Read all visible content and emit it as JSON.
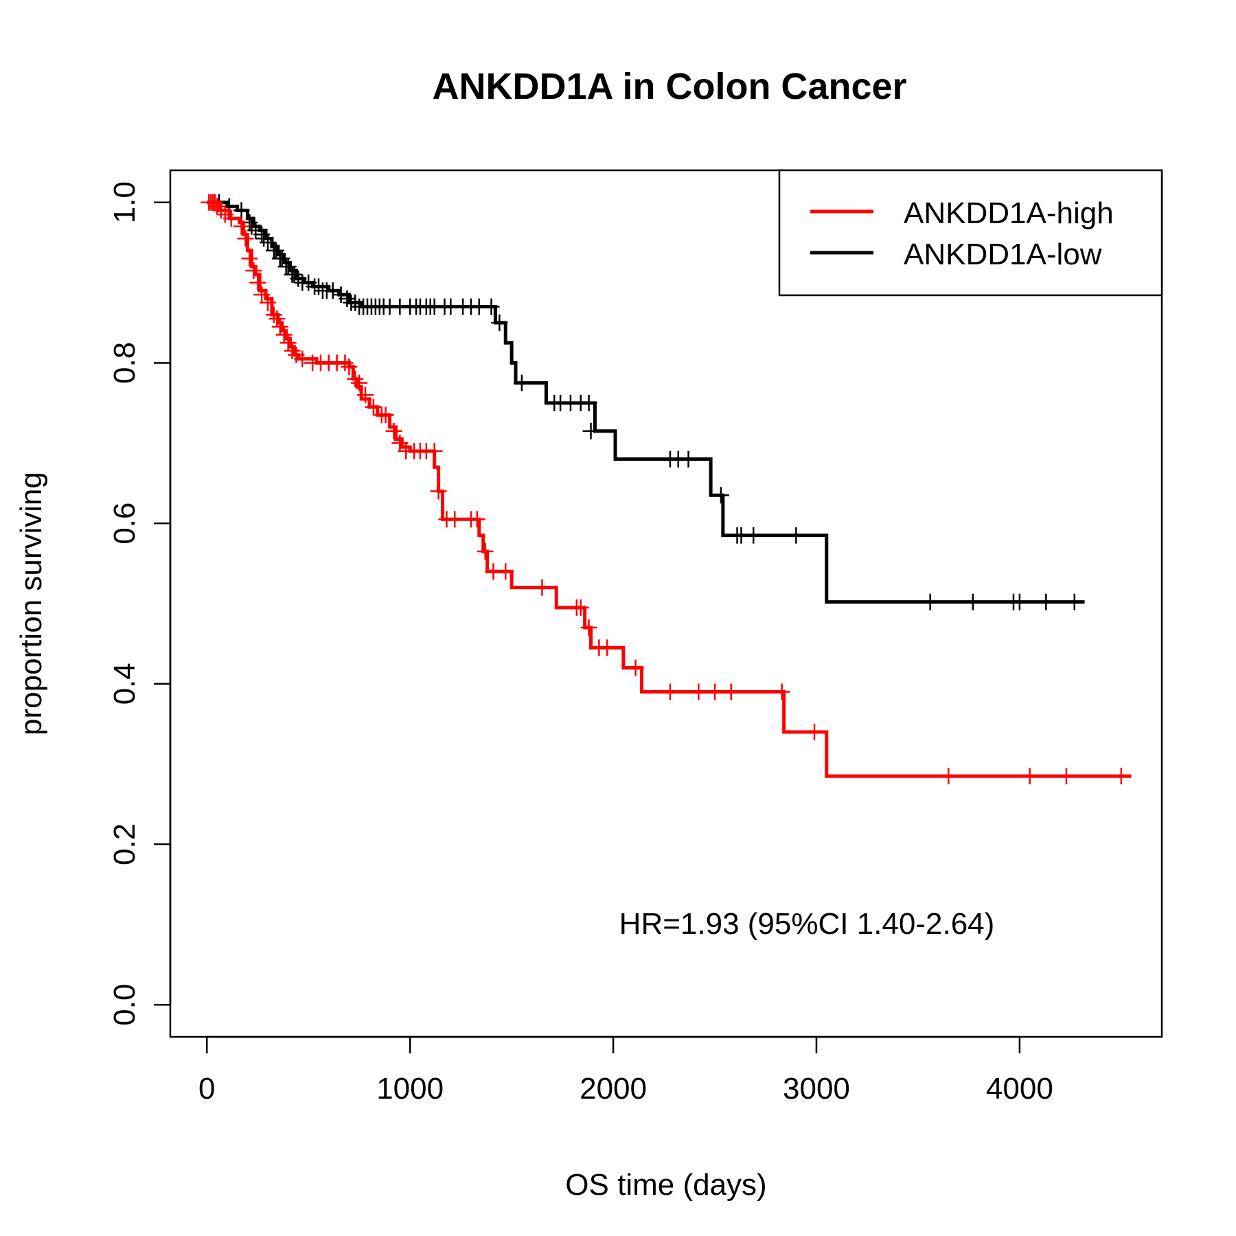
{
  "chart_data": {
    "type": "line",
    "title": "ANKDD1A in Colon Cancer",
    "xlabel": "OS time (days)",
    "ylabel": "proportion surviving",
    "xlim": [
      -180,
      4700
    ],
    "ylim": [
      -0.04,
      1.04
    ],
    "x_ticks": [
      0,
      1000,
      2000,
      3000,
      4000
    ],
    "x_tick_labels": [
      "0",
      "1000",
      "2000",
      "3000",
      "4000"
    ],
    "y_ticks": [
      0.0,
      0.2,
      0.4,
      0.6,
      0.8,
      1.0
    ],
    "y_tick_labels": [
      "0.0",
      "0.2",
      "0.4",
      "0.6",
      "0.8",
      "1.0"
    ],
    "grid": false,
    "legend_position": "top-right",
    "annotation": "HR=1.93 (95%CI 1.40-2.64)",
    "series": [
      {
        "name": "ANKDD1A-high",
        "color": "#ff0000",
        "end_x": 4550,
        "steps": [
          [
            0,
            1.0
          ],
          [
            60,
            0.99
          ],
          [
            110,
            0.98
          ],
          [
            160,
            0.975
          ],
          [
            180,
            0.96
          ],
          [
            200,
            0.94
          ],
          [
            220,
            0.92
          ],
          [
            240,
            0.91
          ],
          [
            260,
            0.89
          ],
          [
            290,
            0.88
          ],
          [
            320,
            0.86
          ],
          [
            350,
            0.85
          ],
          [
            370,
            0.84
          ],
          [
            390,
            0.83
          ],
          [
            410,
            0.82
          ],
          [
            430,
            0.81
          ],
          [
            450,
            0.805
          ],
          [
            540,
            0.8
          ],
          [
            700,
            0.795
          ],
          [
            720,
            0.78
          ],
          [
            740,
            0.77
          ],
          [
            760,
            0.755
          ],
          [
            800,
            0.745
          ],
          [
            840,
            0.735
          ],
          [
            900,
            0.72
          ],
          [
            930,
            0.705
          ],
          [
            960,
            0.695
          ],
          [
            1000,
            0.69
          ],
          [
            1120,
            0.67
          ],
          [
            1140,
            0.64
          ],
          [
            1160,
            0.605
          ],
          [
            1340,
            0.585
          ],
          [
            1360,
            0.565
          ],
          [
            1380,
            0.54
          ],
          [
            1500,
            0.52
          ],
          [
            1720,
            0.495
          ],
          [
            1860,
            0.47
          ],
          [
            1890,
            0.445
          ],
          [
            2050,
            0.42
          ],
          [
            2140,
            0.39
          ],
          [
            2840,
            0.34
          ],
          [
            3050,
            0.285
          ]
        ],
        "censor": [
          [
            10,
            1.0
          ],
          [
            20,
            1.0
          ],
          [
            30,
            1.0
          ],
          [
            40,
            1.0
          ],
          [
            50,
            0.995
          ],
          [
            70,
            0.99
          ],
          [
            90,
            0.985
          ],
          [
            120,
            0.98
          ],
          [
            170,
            0.97
          ],
          [
            190,
            0.955
          ],
          [
            210,
            0.93
          ],
          [
            230,
            0.915
          ],
          [
            250,
            0.9
          ],
          [
            270,
            0.885
          ],
          [
            300,
            0.875
          ],
          [
            330,
            0.86
          ],
          [
            345,
            0.855
          ],
          [
            360,
            0.845
          ],
          [
            380,
            0.835
          ],
          [
            400,
            0.825
          ],
          [
            420,
            0.815
          ],
          [
            440,
            0.81
          ],
          [
            470,
            0.805
          ],
          [
            520,
            0.8
          ],
          [
            560,
            0.8
          ],
          [
            600,
            0.8
          ],
          [
            640,
            0.8
          ],
          [
            680,
            0.8
          ],
          [
            700,
            0.795
          ],
          [
            730,
            0.78
          ],
          [
            750,
            0.775
          ],
          [
            780,
            0.76
          ],
          [
            820,
            0.745
          ],
          [
            860,
            0.735
          ],
          [
            880,
            0.735
          ],
          [
            920,
            0.715
          ],
          [
            950,
            0.7
          ],
          [
            980,
            0.69
          ],
          [
            1020,
            0.69
          ],
          [
            1050,
            0.69
          ],
          [
            1080,
            0.69
          ],
          [
            1120,
            0.69
          ],
          [
            1140,
            0.64
          ],
          [
            1180,
            0.605
          ],
          [
            1220,
            0.605
          ],
          [
            1300,
            0.605
          ],
          [
            1330,
            0.605
          ],
          [
            1370,
            0.565
          ],
          [
            1410,
            0.54
          ],
          [
            1470,
            0.54
          ],
          [
            1650,
            0.52
          ],
          [
            1820,
            0.495
          ],
          [
            1840,
            0.495
          ],
          [
            1880,
            0.47
          ],
          [
            1930,
            0.445
          ],
          [
            1970,
            0.445
          ],
          [
            2110,
            0.42
          ],
          [
            2280,
            0.39
          ],
          [
            2420,
            0.39
          ],
          [
            2500,
            0.39
          ],
          [
            2580,
            0.39
          ],
          [
            2830,
            0.39
          ],
          [
            2990,
            0.34
          ],
          [
            3650,
            0.285
          ],
          [
            4050,
            0.285
          ],
          [
            4230,
            0.285
          ],
          [
            4500,
            0.285
          ]
        ]
      },
      {
        "name": "ANKDD1A-low",
        "color": "#000000",
        "end_x": 4320,
        "steps": [
          [
            0,
            1.0
          ],
          [
            100,
            0.995
          ],
          [
            150,
            0.99
          ],
          [
            200,
            0.98
          ],
          [
            230,
            0.97
          ],
          [
            260,
            0.965
          ],
          [
            290,
            0.955
          ],
          [
            320,
            0.945
          ],
          [
            350,
            0.935
          ],
          [
            380,
            0.925
          ],
          [
            410,
            0.915
          ],
          [
            440,
            0.905
          ],
          [
            480,
            0.9
          ],
          [
            520,
            0.895
          ],
          [
            600,
            0.89
          ],
          [
            650,
            0.885
          ],
          [
            700,
            0.875
          ],
          [
            760,
            0.87
          ],
          [
            1420,
            0.85
          ],
          [
            1470,
            0.825
          ],
          [
            1500,
            0.8
          ],
          [
            1520,
            0.775
          ],
          [
            1670,
            0.75
          ],
          [
            1910,
            0.715
          ],
          [
            2010,
            0.68
          ],
          [
            2480,
            0.635
          ],
          [
            2540,
            0.585
          ],
          [
            3050,
            0.502
          ]
        ],
        "censor": [
          [
            30,
            1.0
          ],
          [
            60,
            1.0
          ],
          [
            110,
            0.995
          ],
          [
            170,
            0.99
          ],
          [
            210,
            0.975
          ],
          [
            220,
            0.97
          ],
          [
            240,
            0.965
          ],
          [
            270,
            0.96
          ],
          [
            280,
            0.955
          ],
          [
            300,
            0.95
          ],
          [
            330,
            0.94
          ],
          [
            340,
            0.94
          ],
          [
            360,
            0.93
          ],
          [
            370,
            0.93
          ],
          [
            390,
            0.92
          ],
          [
            400,
            0.92
          ],
          [
            420,
            0.91
          ],
          [
            430,
            0.91
          ],
          [
            450,
            0.905
          ],
          [
            470,
            0.9
          ],
          [
            500,
            0.9
          ],
          [
            530,
            0.895
          ],
          [
            550,
            0.895
          ],
          [
            570,
            0.89
          ],
          [
            590,
            0.89
          ],
          [
            620,
            0.89
          ],
          [
            660,
            0.885
          ],
          [
            690,
            0.88
          ],
          [
            710,
            0.875
          ],
          [
            730,
            0.875
          ],
          [
            750,
            0.87
          ],
          [
            770,
            0.87
          ],
          [
            790,
            0.87
          ],
          [
            810,
            0.87
          ],
          [
            830,
            0.87
          ],
          [
            850,
            0.87
          ],
          [
            870,
            0.87
          ],
          [
            900,
            0.87
          ],
          [
            950,
            0.87
          ],
          [
            1000,
            0.87
          ],
          [
            1030,
            0.87
          ],
          [
            1050,
            0.87
          ],
          [
            1080,
            0.87
          ],
          [
            1100,
            0.87
          ],
          [
            1120,
            0.87
          ],
          [
            1170,
            0.87
          ],
          [
            1200,
            0.87
          ],
          [
            1260,
            0.87
          ],
          [
            1300,
            0.87
          ],
          [
            1340,
            0.87
          ],
          [
            1400,
            0.87
          ],
          [
            1440,
            0.85
          ],
          [
            1550,
            0.775
          ],
          [
            1710,
            0.75
          ],
          [
            1740,
            0.75
          ],
          [
            1790,
            0.75
          ],
          [
            1840,
            0.75
          ],
          [
            1880,
            0.75
          ],
          [
            1890,
            0.715
          ],
          [
            2280,
            0.68
          ],
          [
            2320,
            0.68
          ],
          [
            2370,
            0.68
          ],
          [
            2530,
            0.635
          ],
          [
            2610,
            0.585
          ],
          [
            2630,
            0.585
          ],
          [
            2690,
            0.585
          ],
          [
            2900,
            0.585
          ],
          [
            3560,
            0.502
          ],
          [
            3770,
            0.502
          ],
          [
            3970,
            0.502
          ],
          [
            4000,
            0.502
          ],
          [
            4130,
            0.502
          ],
          [
            4270,
            0.502
          ]
        ]
      }
    ]
  }
}
